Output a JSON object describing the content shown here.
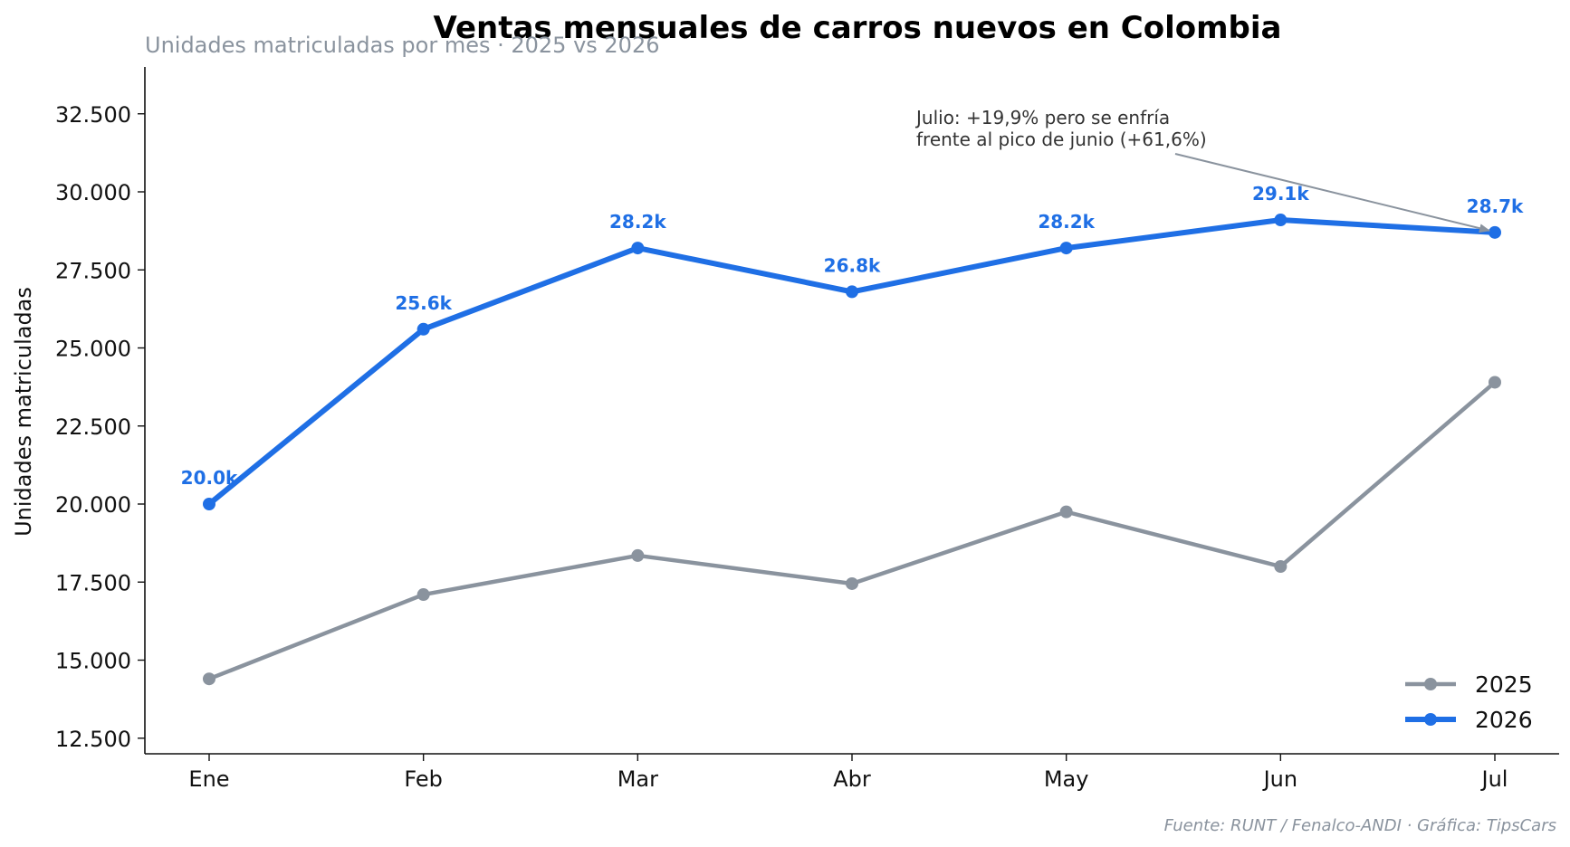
{
  "chart_data": {
    "type": "line",
    "title": "Ventas mensuales de carros nuevos en Colombia",
    "subtitle": "Unidades matriculadas por mes · 2025 vs 2026",
    "xlabel": "",
    "ylabel": "Unidades matriculadas",
    "categories": [
      "Ene",
      "Feb",
      "Mar",
      "Abr",
      "May",
      "Jun",
      "Jul"
    ],
    "ylim": [
      12000,
      34000
    ],
    "yticks": [
      12500,
      15000,
      17500,
      20000,
      22500,
      25000,
      27500,
      30000,
      32500
    ],
    "ytick_labels": [
      "12.500",
      "15.000",
      "17.500",
      "20.000",
      "22.500",
      "25.000",
      "27.500",
      "30.000",
      "32.500"
    ],
    "grid": false,
    "legend_position": "bottom-right",
    "series": [
      {
        "name": "2025",
        "color": "#8a939e",
        "values": [
          14400,
          17100,
          18350,
          17450,
          19750,
          18000,
          23900
        ],
        "data_labels": []
      },
      {
        "name": "2026",
        "color": "#1f6fe5",
        "values": [
          20000,
          25600,
          28200,
          26800,
          28200,
          29100,
          28700
        ],
        "data_labels": [
          "20.0k",
          "25.6k",
          "28.2k",
          "26.8k",
          "28.2k",
          "29.1k",
          "28.7k"
        ]
      }
    ],
    "annotation": {
      "lines": [
        "Julio: +19,9% pero se enfría",
        "frente al pico de junio (+61,6%)"
      ],
      "target_category": "Jul",
      "target_series": "2026",
      "arrow_color": "#8a939e"
    },
    "source": "Fuente: RUNT / Fenalco-ANDI · Gráfica: TipsCars"
  }
}
